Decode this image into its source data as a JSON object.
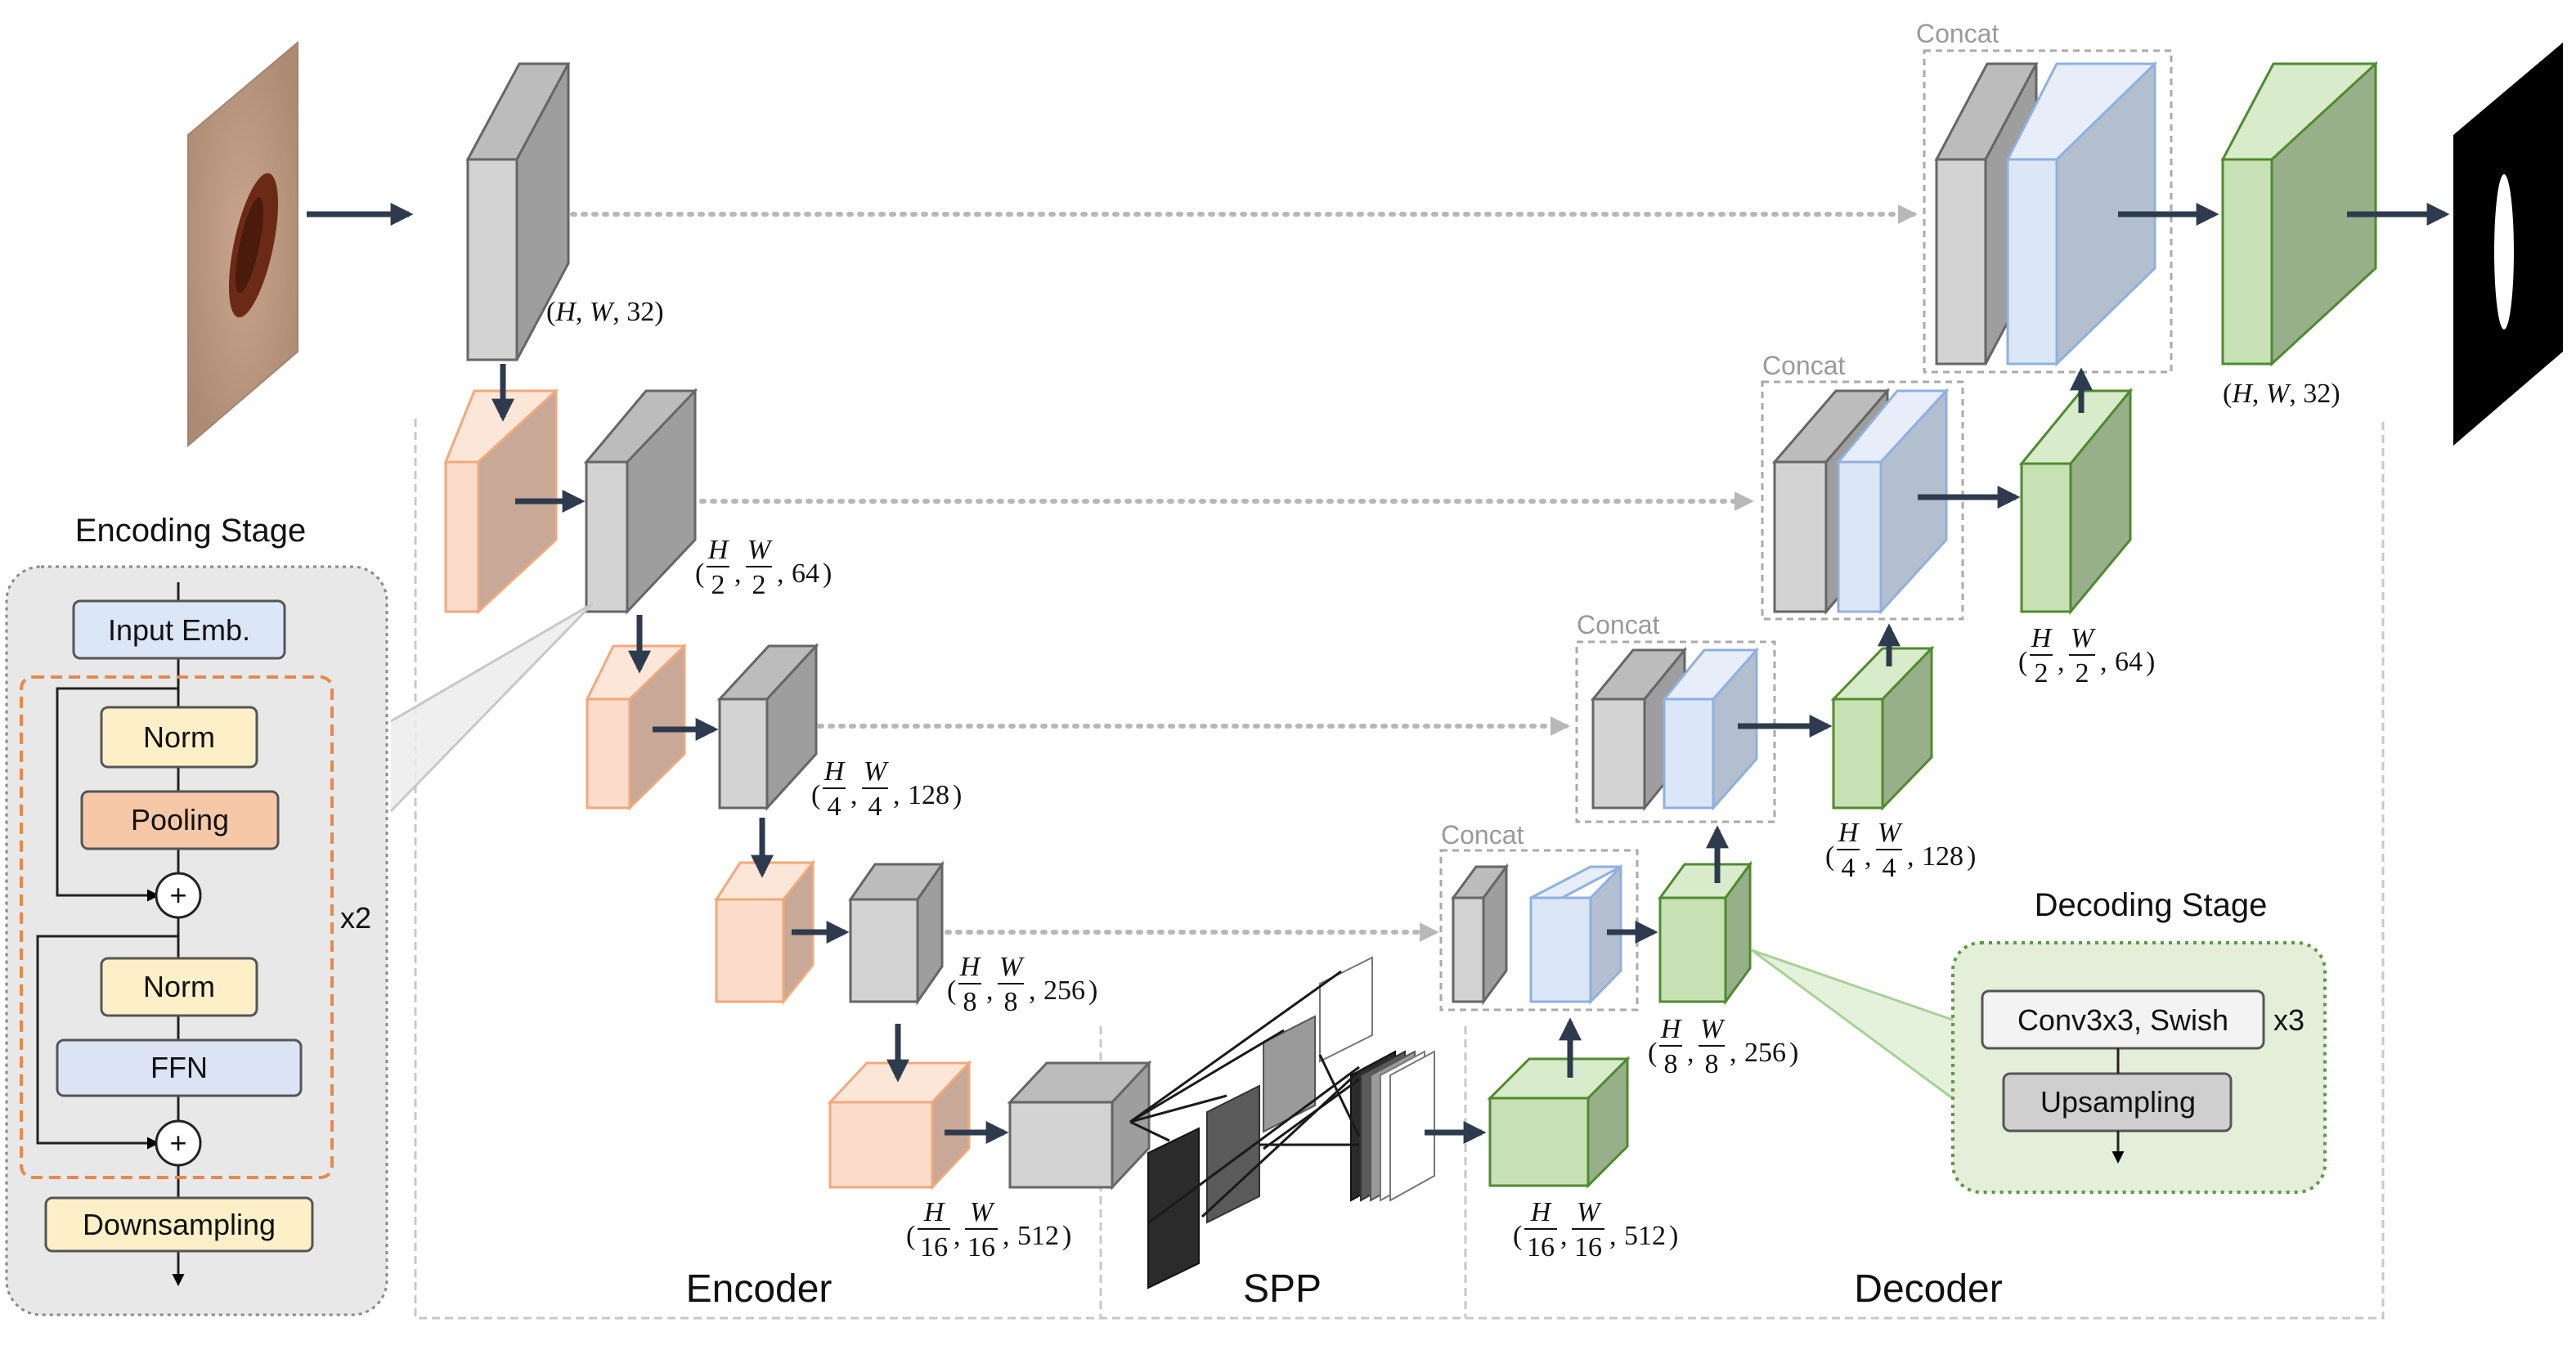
{
  "labels": {
    "concat": "Concat",
    "encoder": "Encoder",
    "spp": "SPP",
    "decoder": "Decoder"
  },
  "encoding_stage": {
    "title": "Encoding Stage",
    "input_emb": "Input Emb.",
    "norm1": "Norm",
    "pooling": "Pooling",
    "norm2": "Norm",
    "ffn": "FFN",
    "downsampling": "Downsampling",
    "repeat": "x2",
    "plus": "+"
  },
  "decoding_stage": {
    "title": "Decoding Stage",
    "conv": "Conv3x3, Swish",
    "upsampling": "Upsampling",
    "repeat": "x3"
  },
  "dims": {
    "full_enc": "(H, W, 32)",
    "half_enc": "(H/2, W/2, 64)",
    "quarter_enc": "(H/4, W/4, 128)",
    "eighth_enc": "(H/8, W/8, 256)",
    "sixteenth_enc": "(H/16, W/16, 512)",
    "sixteenth_dec": "(H/16, W/16, 512)",
    "eighth_dec": "(H/8, W/8, 256)",
    "quarter_dec": "(H/4, W/4, 128)",
    "half_dec": "(H/2, W/2, 64)",
    "full_dec": "(H, W, 32)"
  },
  "dim_parts": {
    "H": "H",
    "W": "W",
    "n32": "32",
    "n64": "64",
    "n128": "128",
    "n256": "256",
    "n512": "512",
    "d2": "2",
    "d4": "4",
    "d8": "8",
    "d16": "16"
  },
  "colors": {
    "gray_front": "#d3d3d3",
    "gray_side": "#9e9e9e",
    "gray_top": "#bcbcbc",
    "orange_front": "#fbdccb",
    "orange_side": "#c8a896",
    "orange_edge": "#f0a97c",
    "blue_front": "#dbe6f6",
    "blue_side": "#b3bfcf",
    "blue_edge": "#8fb0e0",
    "green_front": "#c7e1b5",
    "green_side": "#98b08a",
    "green_edge": "#4f8a2f",
    "arrow": "#2e3b4e",
    "skip": "#b8b8b8",
    "enc_panel": "#e8e8e8",
    "dec_panel": "#e3efd9"
  }
}
